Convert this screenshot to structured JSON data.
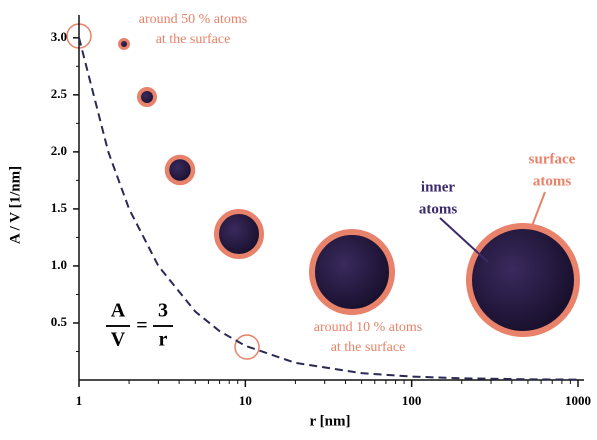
{
  "chart_data": {
    "type": "line",
    "x_label": "r [nm]",
    "y_label": "A / V [1/nm]",
    "xscale": "log",
    "xlim": [
      1,
      1000
    ],
    "ylim": [
      0,
      3.2
    ],
    "xticks": [
      1,
      10,
      100,
      1000
    ],
    "xminor_ticks": [
      2,
      3,
      4,
      5,
      6,
      7,
      8,
      9,
      20,
      30,
      40,
      50,
      60,
      70,
      80,
      90,
      200,
      300,
      400,
      500,
      600,
      700,
      800,
      900
    ],
    "yticks": [
      {
        "value": 0.5,
        "label": "0.5"
      },
      {
        "value": 1,
        "label": "1.0"
      },
      {
        "value": 1.5,
        "label": "1.5"
      },
      {
        "value": 2,
        "label": "2.0"
      },
      {
        "value": 2.5,
        "label": "2.5"
      },
      {
        "value": 3,
        "label": "3.0"
      }
    ],
    "yminor_ticks": [
      0.25,
      0.75,
      1.25,
      1.75,
      2.25,
      2.75
    ],
    "series": [
      {
        "color": "#2b2a55",
        "x": [
          1,
          1.5,
          2,
          3,
          5,
          7,
          10,
          20,
          50,
          100,
          200,
          500,
          1000
        ],
        "values": [
          3,
          2,
          1.5,
          1,
          0.6,
          0.4286,
          0.3,
          0.15,
          0.06,
          0.03,
          0.015,
          0.006,
          0.003
        ]
      }
    ],
    "equation": {
      "lhs_num": "A",
      "lhs_den": "V",
      "eq": "=",
      "rhs_num": "3",
      "rhs_den": "r"
    },
    "annotations": {
      "top": [
        "around 50 % atoms",
        "at the surface"
      ],
      "bottom": [
        "around 10 % atoms",
        "at the surface"
      ],
      "inner": [
        "inner",
        "atoms"
      ],
      "surface": [
        "surface",
        "atoms"
      ]
    }
  }
}
